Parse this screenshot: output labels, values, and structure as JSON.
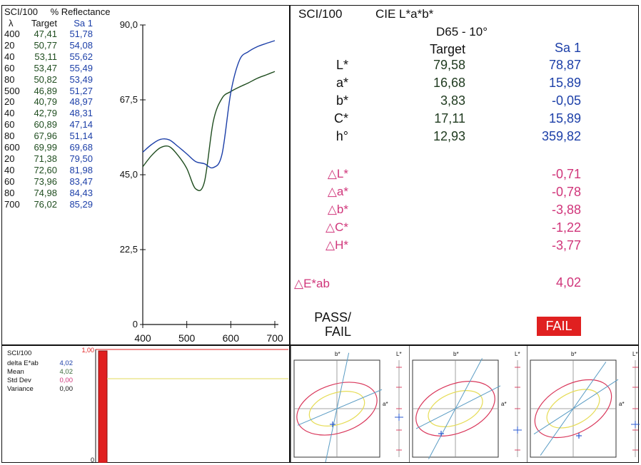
{
  "reflectance": {
    "title_left": "SCI/100",
    "title_right": "% Reflectance",
    "col_lambda": "λ",
    "col_target": "Target",
    "col_sample": "Sa 1",
    "rows": [
      {
        "wl": "400",
        "t": "47,41",
        "s": "51,78"
      },
      {
        "wl": "20",
        "t": "50,77",
        "s": "54,08"
      },
      {
        "wl": "40",
        "t": "53,11",
        "s": "55,62"
      },
      {
        "wl": "60",
        "t": "53,47",
        "s": "55,49"
      },
      {
        "wl": "80",
        "t": "50,82",
        "s": "53,49"
      },
      {
        "wl": "500",
        "t": "46,89",
        "s": "51,27"
      },
      {
        "wl": "20",
        "t": "40,79",
        "s": "48,97"
      },
      {
        "wl": "40",
        "t": "42,79",
        "s": "48,31"
      },
      {
        "wl": "60",
        "t": "60,89",
        "s": "47,14"
      },
      {
        "wl": "80",
        "t": "67,96",
        "s": "51,14"
      },
      {
        "wl": "600",
        "t": "69,99",
        "s": "69,68"
      },
      {
        "wl": "20",
        "t": "71,38",
        "s": "79,50"
      },
      {
        "wl": "40",
        "t": "72,60",
        "s": "81,98"
      },
      {
        "wl": "60",
        "t": "73,96",
        "s": "83,47"
      },
      {
        "wl": "80",
        "t": "74,98",
        "s": "84,43"
      },
      {
        "wl": "700",
        "t": "76,02",
        "s": "85,29"
      }
    ]
  },
  "chart_data": {
    "type": "line",
    "x": [
      400,
      420,
      440,
      460,
      480,
      500,
      520,
      540,
      560,
      580,
      600,
      620,
      640,
      660,
      680,
      700
    ],
    "series": [
      {
        "name": "Target",
        "color": "#1f4d1f",
        "values": [
          47.41,
          50.77,
          53.11,
          53.47,
          50.82,
          46.89,
          40.79,
          42.79,
          60.89,
          67.96,
          69.99,
          71.38,
          72.6,
          73.96,
          74.98,
          76.02
        ]
      },
      {
        "name": "Sa 1",
        "color": "#1c3fa8",
        "values": [
          51.78,
          54.08,
          55.62,
          55.49,
          53.49,
          51.27,
          48.97,
          48.31,
          47.14,
          51.14,
          69.68,
          79.5,
          81.98,
          83.47,
          84.43,
          85.29
        ]
      }
    ],
    "xlim": [
      400,
      700
    ],
    "ylim": [
      0,
      90
    ],
    "yticks": [
      "0",
      "22,5",
      "45,0",
      "67,5",
      "90,0"
    ],
    "xticks": [
      "400",
      "500",
      "600",
      "700"
    ]
  },
  "cie": {
    "title_left": "SCI/100",
    "title_right": "CIE L*a*b*",
    "illuminant": "D65 - 10°",
    "col_target": "Target",
    "col_sample": "Sa 1",
    "rows": [
      {
        "label": "L*",
        "t": "79,58",
        "s": "78,87"
      },
      {
        "label": "a*",
        "t": "16,68",
        "s": "15,89"
      },
      {
        "label": "b*",
        "t": "3,83",
        "s": "-0,05"
      },
      {
        "label": "C*",
        "t": "17,11",
        "s": "15,89"
      },
      {
        "label": "h°",
        "t": "12,93",
        "s": "359,82"
      }
    ],
    "deltas": [
      {
        "label": "△L*",
        "v": "-0,71"
      },
      {
        "label": "△a*",
        "v": "-0,78"
      },
      {
        "label": "△b*",
        "v": "-3,88"
      },
      {
        "label": "△C*",
        "v": "-1,22"
      },
      {
        "label": "△H*",
        "v": "-3,77"
      }
    ],
    "delta_e_label": "△E*ab",
    "delta_e_value": "4,02",
    "pass_fail_label_1": "PASS/",
    "pass_fail_label_2": "FAIL",
    "result": "FAIL"
  },
  "stats": {
    "title": "SCI/100",
    "delta_label": "delta E*ab",
    "delta_value": "4,02",
    "mean_label": "Mean",
    "mean_value": "4,02",
    "std_label": "Std Dev",
    "std_value": "0,00",
    "var_label": "Variance",
    "var_value": "0,00",
    "top_tick": "1,00",
    "bottom_tick": "0",
    "bar_fraction": 1.0
  },
  "ellipse_plots": {
    "axis_b": "b*",
    "axis_a": "a*",
    "axis_L": "L*"
  },
  "colors": {
    "target": "#1f4d1f",
    "sample": "#1c3fa8",
    "delta": "#d0357a",
    "fail": "#e02020"
  }
}
